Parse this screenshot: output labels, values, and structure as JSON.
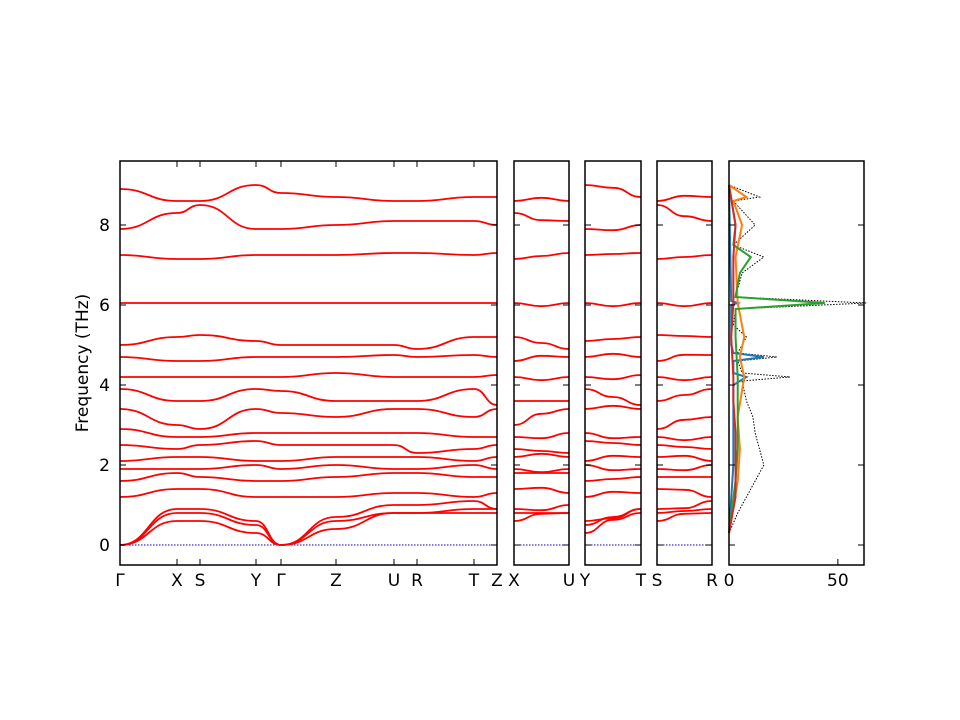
{
  "chart_data": [
    {
      "type": "line",
      "title": "",
      "xlabel": "",
      "ylabel": "Frequency (THz)",
      "ylim": [
        -0.5,
        9.6
      ],
      "yticks": [
        0,
        2,
        4,
        6,
        8
      ],
      "grid": false,
      "legend": "none",
      "line_color": "#ff0000",
      "zero_line_color": "#0000cc",
      "segments": [
        {
          "path": "Γ–X–S–Y–Γ",
          "labels": [
            "Γ",
            "X",
            "S",
            "Y",
            "Γ"
          ]
        },
        {
          "path": "Γ–Z–U–R–T–Z",
          "labels": [
            "",
            "Z",
            "U",
            "R",
            "T",
            "Z"
          ]
        },
        {
          "path": "X–U",
          "labels": [
            "X",
            "U"
          ]
        },
        {
          "path": "Y–T",
          "labels": [
            "Y",
            "T"
          ]
        },
        {
          "path": "S–R",
          "labels": [
            "S",
            "R"
          ]
        }
      ],
      "series": [
        {
          "values": [
            6.05,
            6.05,
            6.05,
            6.05,
            6.05,
            6.05,
            6.05,
            6.05,
            6.05,
            6.05,
            6.05
          ]
        },
        {
          "values": [
            7.25,
            7.15,
            7.15,
            7.25,
            7.25,
            7.25,
            7.3,
            7.3,
            7.25,
            7.3,
            7.3
          ]
        },
        {
          "values": [
            8.9,
            8.6,
            8.6,
            9.0,
            8.8,
            8.7,
            8.6,
            8.6,
            8.7,
            8.7,
            8.6
          ]
        },
        {
          "values": [
            7.9,
            8.3,
            8.5,
            7.9,
            7.9,
            8.0,
            8.1,
            8.1,
            8.1,
            8.0,
            8.1
          ]
        },
        {
          "values": [
            5.0,
            5.2,
            5.25,
            5.1,
            5.0,
            5.0,
            5.0,
            4.9,
            5.2,
            5.2,
            5.2
          ]
        },
        {
          "values": [
            4.7,
            4.6,
            4.6,
            4.7,
            4.7,
            4.7,
            4.75,
            4.7,
            4.75,
            4.7,
            4.75
          ]
        },
        {
          "values": [
            4.2,
            4.2,
            4.2,
            4.2,
            4.2,
            4.3,
            4.2,
            4.2,
            4.2,
            4.25,
            4.2
          ]
        },
        {
          "values": [
            3.9,
            3.6,
            3.6,
            3.9,
            3.85,
            3.6,
            3.6,
            3.6,
            3.9,
            3.5,
            3.5
          ]
        },
        {
          "values": [
            3.4,
            3.0,
            2.9,
            3.4,
            3.3,
            3.2,
            3.4,
            3.4,
            3.2,
            3.4,
            3.3
          ]
        },
        {
          "values": [
            2.9,
            2.7,
            2.7,
            2.8,
            2.8,
            2.8,
            2.8,
            2.8,
            2.7,
            2.7,
            2.8
          ]
        },
        {
          "values": [
            2.5,
            2.4,
            2.5,
            2.6,
            2.5,
            2.5,
            2.5,
            2.3,
            2.4,
            2.5,
            2.5
          ]
        },
        {
          "values": [
            2.1,
            2.2,
            2.2,
            2.1,
            2.1,
            2.2,
            2.2,
            2.2,
            2.1,
            2.2,
            2.2
          ]
        },
        {
          "values": [
            1.9,
            1.9,
            1.9,
            2.0,
            1.9,
            2.0,
            1.9,
            1.9,
            2.0,
            1.9,
            1.9
          ]
        },
        {
          "values": [
            1.6,
            1.8,
            1.7,
            1.6,
            1.6,
            1.7,
            1.8,
            1.8,
            1.7,
            1.7,
            1.8
          ]
        },
        {
          "values": [
            1.2,
            1.4,
            1.4,
            1.2,
            1.2,
            1.2,
            1.3,
            1.3,
            1.2,
            1.3,
            1.3
          ]
        },
        {
          "values": [
            0.0,
            0.9,
            0.9,
            0.6,
            0.0,
            0.7,
            1.0,
            1.0,
            1.1,
            0.9,
            1.0
          ]
        },
        {
          "values": [
            0.0,
            0.8,
            0.8,
            0.5,
            0.0,
            0.6,
            0.8,
            0.8,
            0.9,
            0.9,
            0.9
          ]
        },
        {
          "values": [
            0.0,
            0.6,
            0.6,
            0.3,
            0.0,
            0.4,
            0.8,
            0.8,
            0.8,
            0.8,
            0.8
          ]
        }
      ]
    },
    {
      "type": "line",
      "title": "",
      "xlabel": "",
      "ylabel": "",
      "xlim": [
        0,
        62
      ],
      "xticks": [
        0,
        50
      ],
      "ylim": [
        -0.5,
        9.6
      ],
      "grid": false,
      "legend": "none",
      "series": [
        {
          "color": "#000000",
          "style": "dotted",
          "freq": [
            0.3,
            0.8,
            1.2,
            1.6,
            2.0,
            2.4,
            2.8,
            3.2,
            3.6,
            4.1,
            4.2,
            4.3,
            4.6,
            4.7,
            4.8,
            5.2,
            5.5,
            5.9,
            6.05,
            6.2,
            6.8,
            7.2,
            7.5,
            8.0,
            8.6,
            8.7,
            9.0
          ],
          "dos": [
            0,
            4,
            8,
            12,
            16,
            14,
            12,
            11,
            8,
            6,
            28,
            6,
            4,
            22,
            4,
            8,
            2,
            3,
            63,
            3,
            6,
            16,
            2,
            12,
            2,
            14,
            0
          ]
        },
        {
          "color": "#1f77b4",
          "style": "solid",
          "freq": [
            0.3,
            2.0,
            4.0,
            4.2,
            4.3,
            4.6,
            4.7,
            4.8,
            5.0,
            6.0,
            6.05,
            6.1,
            9.0
          ],
          "dos": [
            0,
            2,
            2,
            8,
            2,
            2,
            16,
            2,
            1,
            1,
            4,
            1,
            0
          ]
        },
        {
          "color": "#ff7f0e",
          "style": "solid",
          "freq": [
            0.3,
            1.6,
            2.4,
            3.2,
            4.2,
            4.7,
            5.2,
            6.05,
            7.2,
            8.0,
            8.6,
            8.7,
            9.0
          ],
          "dos": [
            0,
            4,
            5,
            4,
            7,
            5,
            7,
            4,
            3,
            6,
            2,
            8,
            0
          ]
        },
        {
          "color": "#2ca02c",
          "style": "solid",
          "freq": [
            0.3,
            1.6,
            2.4,
            3.2,
            4.2,
            5.2,
            5.9,
            6.05,
            6.2,
            6.8,
            7.2,
            7.5,
            8.0,
            9.0
          ],
          "dos": [
            0,
            3,
            4,
            4,
            4,
            3,
            3,
            44,
            3,
            5,
            10,
            2,
            3,
            0
          ]
        },
        {
          "color": "#d62728",
          "style": "solid",
          "freq": [
            0.3,
            1.2,
            2.0,
            2.8,
            3.6,
            4.2,
            5.2,
            6.05,
            7.2,
            8.0,
            9.0
          ],
          "dos": [
            0,
            3,
            3,
            3,
            2,
            2,
            1,
            2,
            2,
            3,
            0
          ]
        }
      ]
    }
  ],
  "panels": [
    {
      "id": "seg1",
      "tick_labels": [
        "Γ",
        "X",
        "S",
        "Y",
        "Γ",
        "Z",
        "U",
        "R",
        "T",
        "Z"
      ]
    },
    {
      "id": "seg2",
      "tick_labels": [
        "X",
        "U"
      ]
    },
    {
      "id": "seg3",
      "tick_labels": [
        "Y",
        "T"
      ]
    },
    {
      "id": "seg4",
      "tick_labels": [
        "S",
        "R"
      ]
    },
    {
      "id": "dos",
      "tick_labels": [
        "0",
        "50"
      ]
    }
  ],
  "y_tick_labels": [
    "0",
    "2",
    "4",
    "6",
    "8"
  ]
}
